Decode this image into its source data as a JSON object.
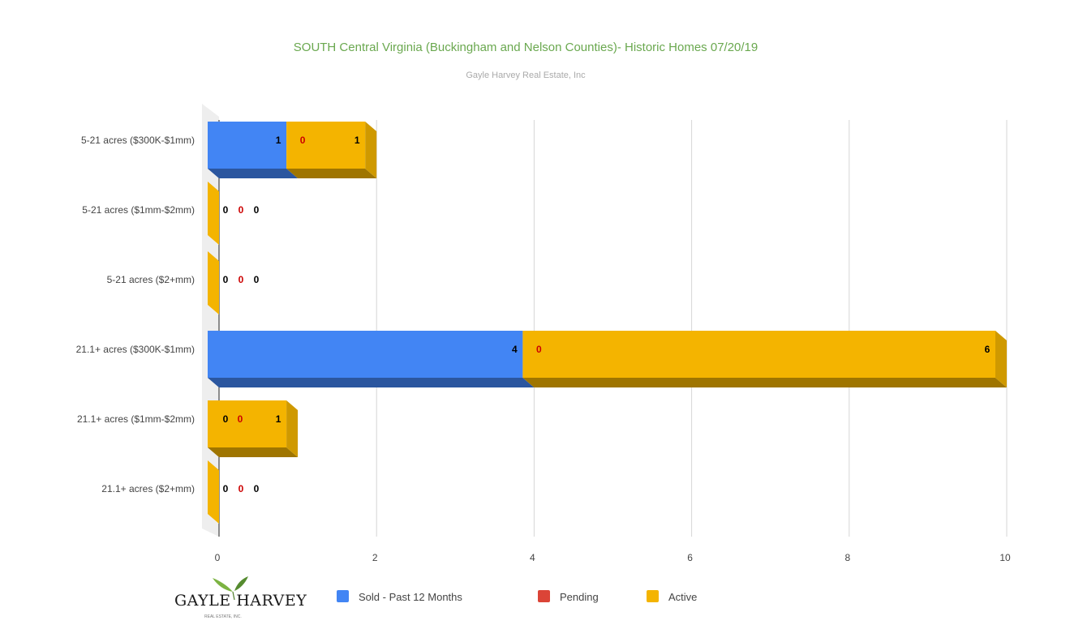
{
  "chart_data": {
    "type": "bar",
    "orientation": "horizontal",
    "stacked": true,
    "style_3d": true,
    "title": "SOUTH Central Virginia (Buckingham and Nelson Counties)- Historic Homes 07/20/19",
    "subtitle": "Gayle Harvey Real Estate, Inc",
    "categories": [
      "5-21 acres ($300K-$1mm)",
      "5-21 acres ($1mm-$2mm)",
      "5-21 acres ($2+mm)",
      "21.1+ acres ($300K-$1mm)",
      "21.1+ acres ($1mm-$2mm)",
      "21.1+ acres ($2+mm)"
    ],
    "series": [
      {
        "name": "Sold - Past 12 Months",
        "color": "#4285f4",
        "label_color": "#000000",
        "values": [
          1,
          0,
          0,
          4,
          0,
          0
        ]
      },
      {
        "name": "Pending",
        "color": "#db4437",
        "label_color": "#cc0000",
        "values": [
          0,
          0,
          0,
          0,
          0,
          0
        ]
      },
      {
        "name": "Active",
        "color": "#f4b400",
        "label_color": "#000000",
        "values": [
          1,
          0,
          0,
          6,
          1,
          0
        ]
      }
    ],
    "xlim": [
      0,
      10
    ],
    "xticks": [
      0,
      2,
      4,
      6,
      8,
      10
    ],
    "grid": true,
    "legend_position": "bottom"
  },
  "logo": {
    "text": "GAYLE HARVEY",
    "subtext": "REAL ESTATE, INC."
  }
}
